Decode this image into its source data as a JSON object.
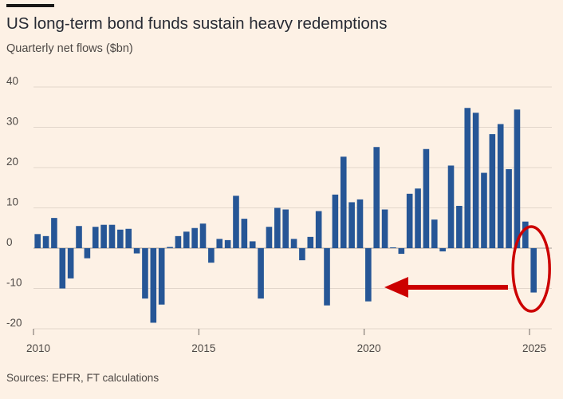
{
  "header": {
    "title": "US long-term bond funds sustain heavy redemptions",
    "subtitle": "Quarterly net flows ($bn)"
  },
  "footer": {
    "source": "Sources: EPFR, FT calculations"
  },
  "colors": {
    "bar": "#265696",
    "annotation": "#cc0000",
    "background": "#fdf1e5"
  },
  "chart_data": {
    "type": "bar",
    "title": "US long-term bond funds sustain heavy redemptions",
    "subtitle": "Quarterly net flows ($bn)",
    "xlabel": "",
    "ylabel": "Quarterly net flows ($bn)",
    "ylim": [
      -20,
      40
    ],
    "yticks": [
      40,
      30,
      20,
      10,
      0,
      -10,
      -20
    ],
    "xticks": [
      "2010",
      "2015",
      "2020",
      "2025"
    ],
    "start_year": 2010,
    "series": [
      {
        "name": "Quarterly net flows",
        "values": [
          3.5,
          3.0,
          7.5,
          -10.0,
          -7.5,
          5.5,
          -2.5,
          5.3,
          5.8,
          5.8,
          4.6,
          4.8,
          -1.3,
          -12.5,
          -18.5,
          -14.0,
          0.3,
          3.0,
          4.1,
          5.0,
          6.1,
          -3.6,
          2.3,
          2.0,
          13.0,
          7.3,
          1.7,
          -12.5,
          5.3,
          10.0,
          9.6,
          2.3,
          -3.0,
          2.8,
          9.2,
          -14.2,
          13.3,
          22.7,
          11.4,
          12.1,
          -13.2,
          25.1,
          9.6,
          0.2,
          -1.4,
          13.5,
          14.8,
          24.6,
          7.1,
          -0.8,
          20.5,
          10.5,
          34.8,
          33.6,
          18.7,
          28.3,
          30.8,
          19.6,
          34.4,
          6.6,
          -11.0
        ]
      }
    ],
    "annotations": [
      {
        "type": "arrow",
        "direction": "left",
        "target": "latest quarter"
      },
      {
        "type": "ellipse",
        "target": "latest quarter"
      }
    ]
  }
}
